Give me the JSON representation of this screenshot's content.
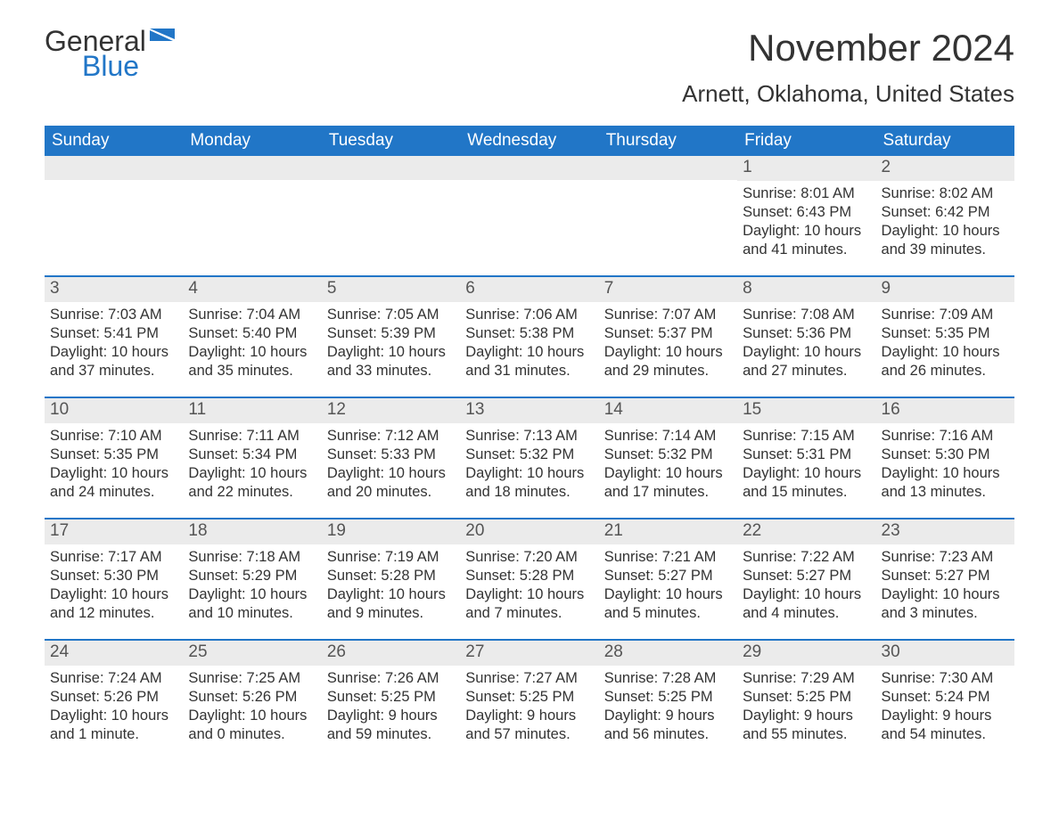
{
  "brand": {
    "word1": "General",
    "word2": "Blue",
    "logo_gray": "#333333",
    "logo_blue": "#2176c7"
  },
  "title": "November 2024",
  "location": "Arnett, Oklahoma, United States",
  "colors": {
    "header_bg": "#2176c7",
    "header_text": "#ffffff",
    "daynum_bg": "#ebebeb",
    "daynum_text": "#555555",
    "body_text": "#333333",
    "row_border": "#2176c7",
    "page_bg": "#ffffff"
  },
  "typography": {
    "month_title_fontsize": 42,
    "location_fontsize": 26,
    "day_header_fontsize": 19,
    "day_number_fontsize": 19,
    "day_body_fontsize": 16.5,
    "logo_fontsize": 32
  },
  "day_headers": [
    "Sunday",
    "Monday",
    "Tuesday",
    "Wednesday",
    "Thursday",
    "Friday",
    "Saturday"
  ],
  "labels": {
    "sunrise": "Sunrise: ",
    "sunset": "Sunset: ",
    "daylight": "Daylight: "
  },
  "weeks": [
    [
      null,
      null,
      null,
      null,
      null,
      {
        "n": "1",
        "sunrise": "8:01 AM",
        "sunset": "6:43 PM",
        "daylight": "10 hours and 41 minutes."
      },
      {
        "n": "2",
        "sunrise": "8:02 AM",
        "sunset": "6:42 PM",
        "daylight": "10 hours and 39 minutes."
      }
    ],
    [
      {
        "n": "3",
        "sunrise": "7:03 AM",
        "sunset": "5:41 PM",
        "daylight": "10 hours and 37 minutes."
      },
      {
        "n": "4",
        "sunrise": "7:04 AM",
        "sunset": "5:40 PM",
        "daylight": "10 hours and 35 minutes."
      },
      {
        "n": "5",
        "sunrise": "7:05 AM",
        "sunset": "5:39 PM",
        "daylight": "10 hours and 33 minutes."
      },
      {
        "n": "6",
        "sunrise": "7:06 AM",
        "sunset": "5:38 PM",
        "daylight": "10 hours and 31 minutes."
      },
      {
        "n": "7",
        "sunrise": "7:07 AM",
        "sunset": "5:37 PM",
        "daylight": "10 hours and 29 minutes."
      },
      {
        "n": "8",
        "sunrise": "7:08 AM",
        "sunset": "5:36 PM",
        "daylight": "10 hours and 27 minutes."
      },
      {
        "n": "9",
        "sunrise": "7:09 AM",
        "sunset": "5:35 PM",
        "daylight": "10 hours and 26 minutes."
      }
    ],
    [
      {
        "n": "10",
        "sunrise": "7:10 AM",
        "sunset": "5:35 PM",
        "daylight": "10 hours and 24 minutes."
      },
      {
        "n": "11",
        "sunrise": "7:11 AM",
        "sunset": "5:34 PM",
        "daylight": "10 hours and 22 minutes."
      },
      {
        "n": "12",
        "sunrise": "7:12 AM",
        "sunset": "5:33 PM",
        "daylight": "10 hours and 20 minutes."
      },
      {
        "n": "13",
        "sunrise": "7:13 AM",
        "sunset": "5:32 PM",
        "daylight": "10 hours and 18 minutes."
      },
      {
        "n": "14",
        "sunrise": "7:14 AM",
        "sunset": "5:32 PM",
        "daylight": "10 hours and 17 minutes."
      },
      {
        "n": "15",
        "sunrise": "7:15 AM",
        "sunset": "5:31 PM",
        "daylight": "10 hours and 15 minutes."
      },
      {
        "n": "16",
        "sunrise": "7:16 AM",
        "sunset": "5:30 PM",
        "daylight": "10 hours and 13 minutes."
      }
    ],
    [
      {
        "n": "17",
        "sunrise": "7:17 AM",
        "sunset": "5:30 PM",
        "daylight": "10 hours and 12 minutes."
      },
      {
        "n": "18",
        "sunrise": "7:18 AM",
        "sunset": "5:29 PM",
        "daylight": "10 hours and 10 minutes."
      },
      {
        "n": "19",
        "sunrise": "7:19 AM",
        "sunset": "5:28 PM",
        "daylight": "10 hours and 9 minutes."
      },
      {
        "n": "20",
        "sunrise": "7:20 AM",
        "sunset": "5:28 PM",
        "daylight": "10 hours and 7 minutes."
      },
      {
        "n": "21",
        "sunrise": "7:21 AM",
        "sunset": "5:27 PM",
        "daylight": "10 hours and 5 minutes."
      },
      {
        "n": "22",
        "sunrise": "7:22 AM",
        "sunset": "5:27 PM",
        "daylight": "10 hours and 4 minutes."
      },
      {
        "n": "23",
        "sunrise": "7:23 AM",
        "sunset": "5:27 PM",
        "daylight": "10 hours and 3 minutes."
      }
    ],
    [
      {
        "n": "24",
        "sunrise": "7:24 AM",
        "sunset": "5:26 PM",
        "daylight": "10 hours and 1 minute."
      },
      {
        "n": "25",
        "sunrise": "7:25 AM",
        "sunset": "5:26 PM",
        "daylight": "10 hours and 0 minutes."
      },
      {
        "n": "26",
        "sunrise": "7:26 AM",
        "sunset": "5:25 PM",
        "daylight": "9 hours and 59 minutes."
      },
      {
        "n": "27",
        "sunrise": "7:27 AM",
        "sunset": "5:25 PM",
        "daylight": "9 hours and 57 minutes."
      },
      {
        "n": "28",
        "sunrise": "7:28 AM",
        "sunset": "5:25 PM",
        "daylight": "9 hours and 56 minutes."
      },
      {
        "n": "29",
        "sunrise": "7:29 AM",
        "sunset": "5:25 PM",
        "daylight": "9 hours and 55 minutes."
      },
      {
        "n": "30",
        "sunrise": "7:30 AM",
        "sunset": "5:24 PM",
        "daylight": "9 hours and 54 minutes."
      }
    ]
  ]
}
